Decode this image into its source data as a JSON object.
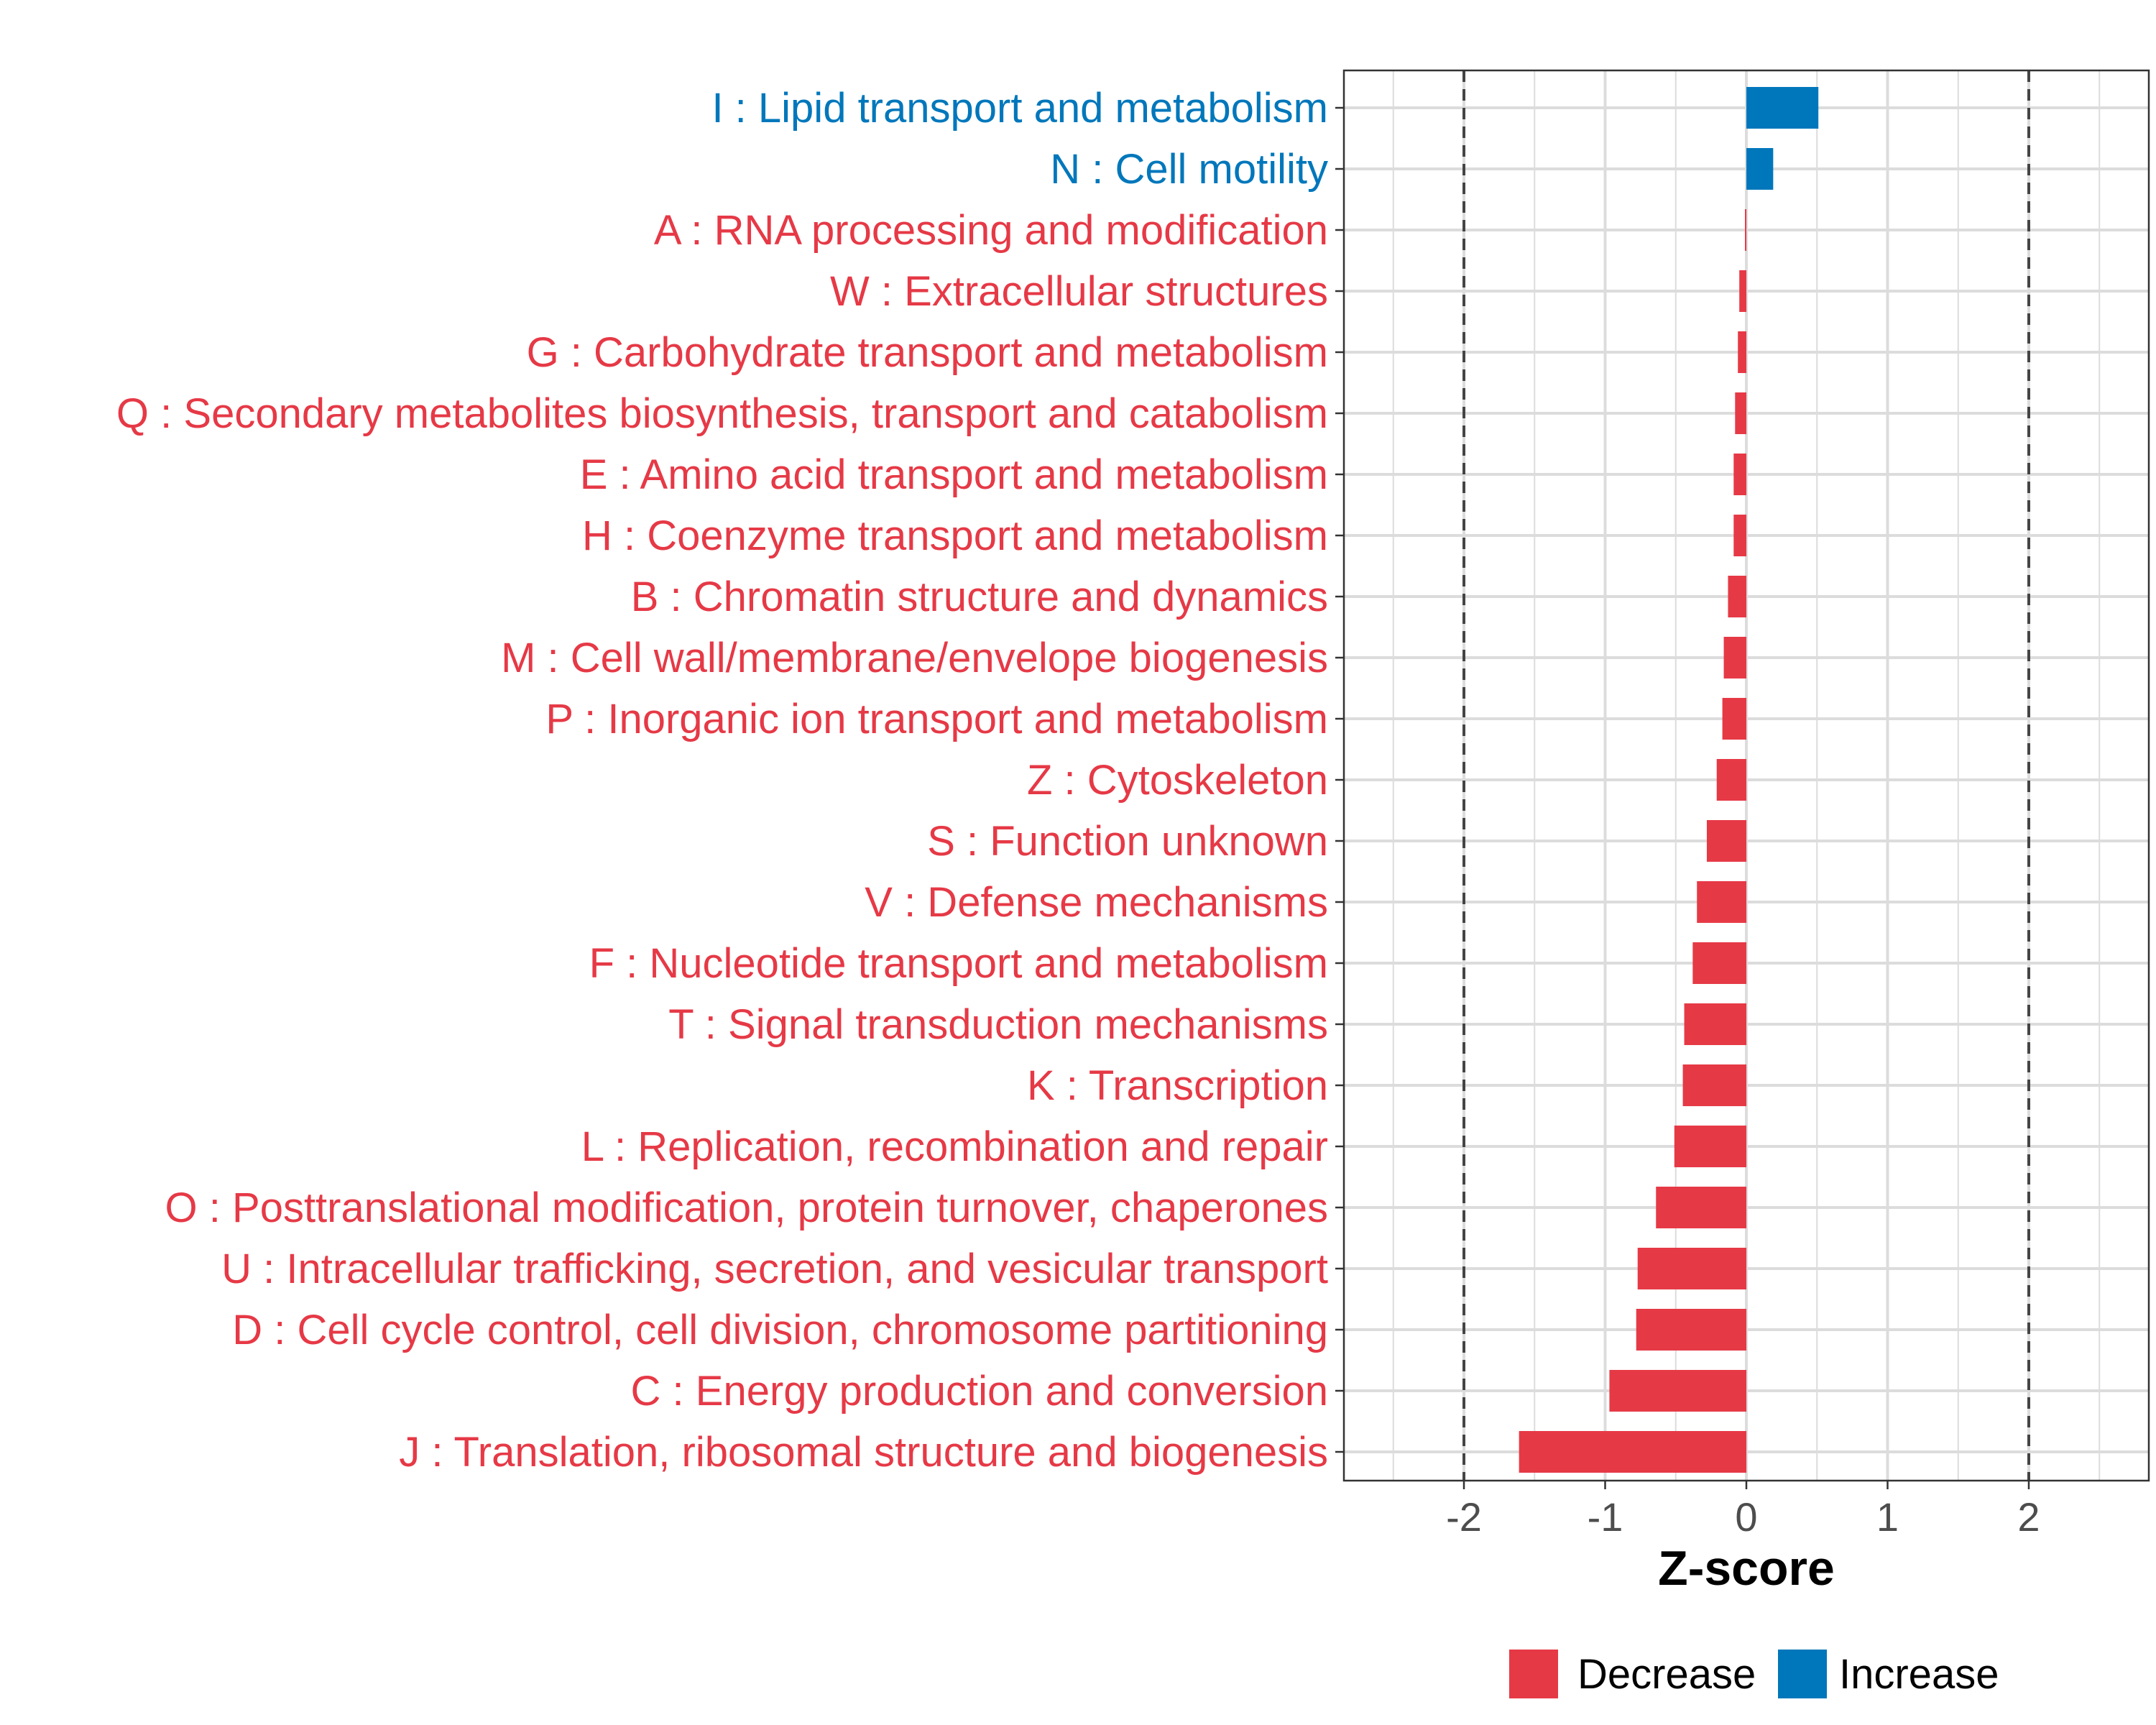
{
  "chart_data": {
    "type": "bar",
    "orientation": "horizontal",
    "xlabel": "Z-score",
    "ylabel": "",
    "xlim": [
      -2.85,
      2.85
    ],
    "x_ticks": [
      -2,
      -1,
      0,
      1,
      2
    ],
    "x_tick_labels": [
      "-2",
      "-1",
      "0",
      "1",
      "2"
    ],
    "reference_lines": [
      -2,
      2
    ],
    "grid": true,
    "colors": {
      "Decrease": "#e63946",
      "Increase": "#0077bb"
    },
    "legend": {
      "position": "bottom",
      "entries": [
        {
          "name": "Decrease",
          "color": "#e63946"
        },
        {
          "name": "Increase",
          "color": "#0077bb"
        }
      ]
    },
    "categories": [
      "I : Lipid transport and metabolism",
      "N : Cell motility",
      "A : RNA processing and modification",
      "W : Extracellular structures",
      "G : Carbohydrate transport and metabolism",
      "Q : Secondary metabolites biosynthesis, transport and catabolism",
      "E : Amino acid transport and metabolism",
      "H : Coenzyme transport and metabolism",
      "B : Chromatin structure and dynamics",
      "M : Cell wall/membrane/envelope biogenesis",
      "P : Inorganic ion transport and metabolism",
      "Z : Cytoskeleton",
      "S : Function unknown",
      "V : Defense mechanisms",
      "F : Nucleotide transport and metabolism",
      "T : Signal transduction mechanisms",
      "K : Transcription",
      "L : Replication, recombination and repair",
      "O : Posttranslational modification, protein turnover, chaperones",
      "U : Intracellular trafficking, secretion, and vesicular transport",
      "D : Cell cycle control, cell division, chromosome partitioning",
      "C : Energy production and conversion",
      "J : Translation, ribosomal structure and biogenesis"
    ],
    "values": [
      0.51,
      0.19,
      -0.01,
      -0.05,
      -0.06,
      -0.08,
      -0.09,
      -0.09,
      -0.13,
      -0.16,
      -0.17,
      -0.21,
      -0.28,
      -0.35,
      -0.38,
      -0.44,
      -0.45,
      -0.51,
      -0.64,
      -0.77,
      -0.78,
      -0.97,
      -1.61
    ],
    "groups": [
      "Increase",
      "Increase",
      "Decrease",
      "Decrease",
      "Decrease",
      "Decrease",
      "Decrease",
      "Decrease",
      "Decrease",
      "Decrease",
      "Decrease",
      "Decrease",
      "Decrease",
      "Decrease",
      "Decrease",
      "Decrease",
      "Decrease",
      "Decrease",
      "Decrease",
      "Decrease",
      "Decrease",
      "Decrease",
      "Decrease"
    ]
  }
}
